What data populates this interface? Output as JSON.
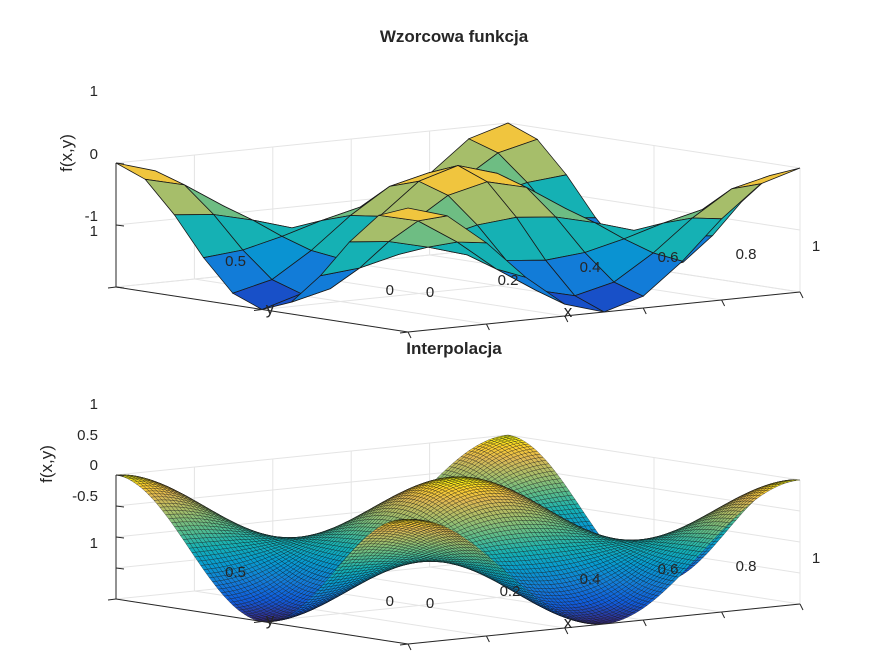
{
  "chart_data": [
    {
      "type": "surface",
      "title": "Wzorcowa funkcja",
      "xlabel": "x",
      "ylabel": "y",
      "zlabel": "f(x,y)",
      "function": "cos(2*pi*x)*cos(2*pi*y)",
      "mesh": "faceted",
      "grid_size": 11,
      "x": [
        0,
        0.1,
        0.2,
        0.3,
        0.4,
        0.5,
        0.6,
        0.7,
        0.8,
        0.9,
        1
      ],
      "y": [
        0,
        0.1,
        0.2,
        0.3,
        0.4,
        0.5,
        0.6,
        0.7,
        0.8,
        0.9,
        1
      ],
      "xlim": [
        0,
        1
      ],
      "ylim": [
        0,
        1
      ],
      "zlim": [
        -1,
        1
      ],
      "xticks": [
        "0",
        "0.2",
        "0.4",
        "0.6",
        "0.8",
        "1"
      ],
      "yticks": [
        "0",
        "0.5",
        "1"
      ],
      "zticks": [
        "-1",
        "0",
        "1"
      ],
      "colormap": "parula",
      "grid": true
    },
    {
      "type": "surface",
      "title": "Interpolacja",
      "xlabel": "x",
      "ylabel": "y",
      "zlabel": "f(x,y)",
      "function": "cos(2*pi*x)*cos(2*pi*y)",
      "mesh": "dense",
      "grid_size": 101,
      "xlim": [
        0,
        1
      ],
      "ylim": [
        0,
        1
      ],
      "zlim": [
        -1,
        1
      ],
      "xticks": [
        "0",
        "0.2",
        "0.4",
        "0.6",
        "0.8",
        "1"
      ],
      "yticks": [
        "0",
        "0.5",
        "1"
      ],
      "zticks": [
        "-0.5",
        "0",
        "0.5",
        "1"
      ],
      "colormap": "parula",
      "grid": true
    }
  ]
}
